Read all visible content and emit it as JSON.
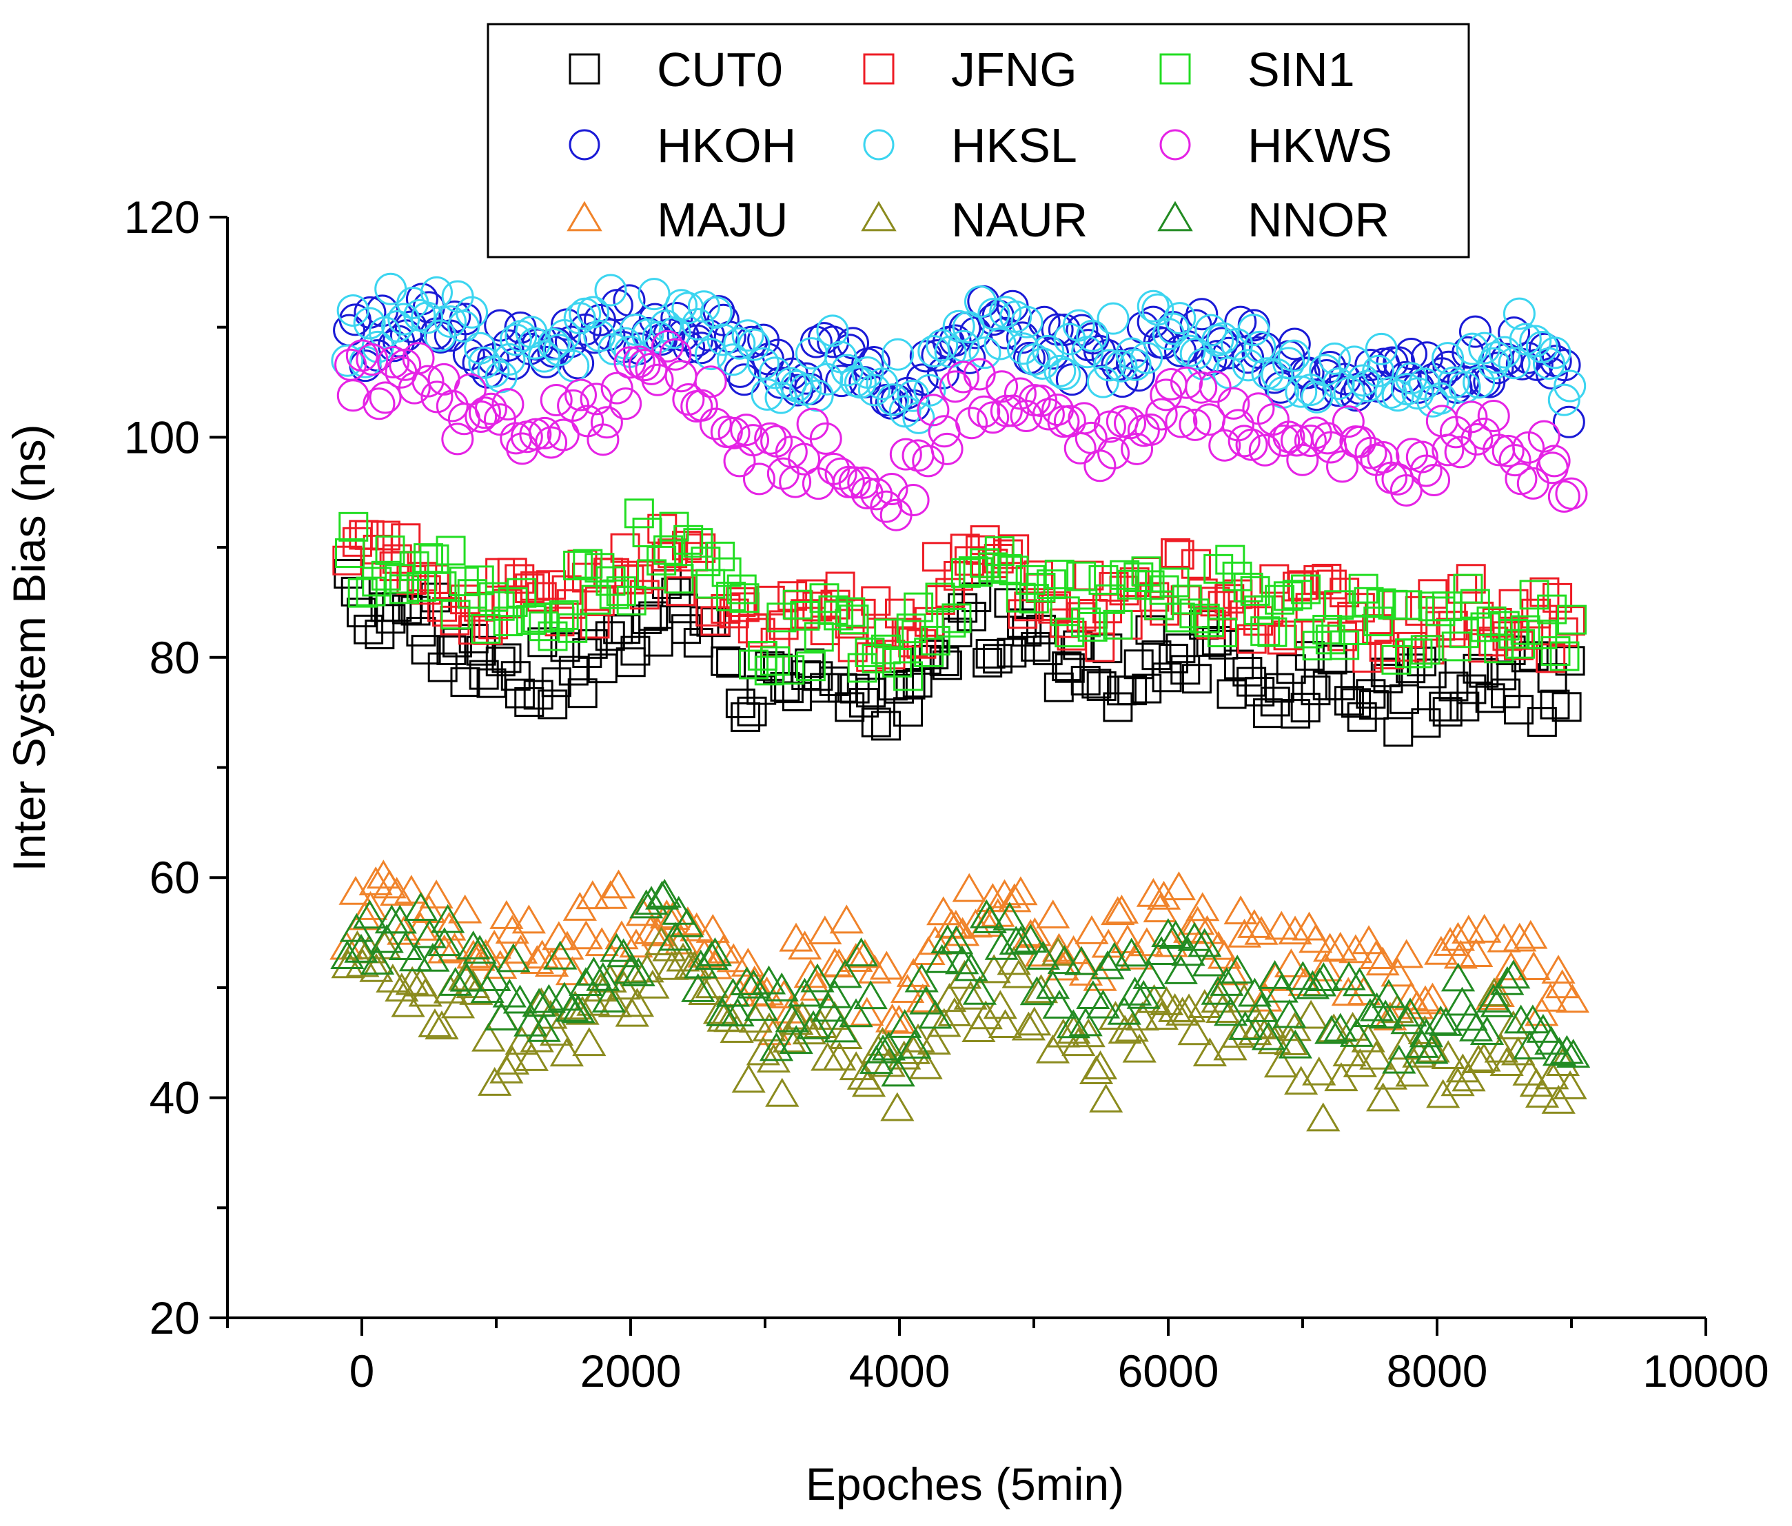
{
  "chart_data": {
    "type": "scatter",
    "title": "",
    "xlabel": "Epoches (5min)",
    "ylabel": "Inter System Bias (ns)",
    "xlim": [
      -1000,
      10000
    ],
    "ylim": [
      20,
      120
    ],
    "xticks": [
      0,
      2000,
      4000,
      6000,
      8000,
      10000
    ],
    "yticks": [
      20,
      40,
      60,
      80,
      100,
      120
    ],
    "grid": false,
    "legend_position": "top-center",
    "legend_columns": 3,
    "x_range": [
      -100,
      9000
    ],
    "series": [
      {
        "name": "CUT0",
        "marker": "square",
        "color": "#000000",
        "x": [
          0,
          250,
          500,
          750,
          1000,
          1250,
          1500,
          1750,
          2000,
          2250,
          2500,
          2750,
          3000,
          3250,
          3500,
          3750,
          4000,
          4250,
          4500,
          4750,
          5000,
          5250,
          5500,
          5750,
          6000,
          6250,
          6500,
          6750,
          7000,
          7250,
          7500,
          7750,
          8000,
          8250,
          8500,
          8750,
          9000
        ],
        "values": [
          85,
          84,
          83,
          80,
          78,
          78,
          79,
          80,
          82,
          84,
          82,
          79,
          76,
          77,
          78,
          77,
          76,
          80,
          82,
          83,
          81,
          80,
          79,
          80,
          81,
          80,
          79,
          78,
          78,
          78,
          77,
          76,
          77,
          78,
          78,
          77,
          77
        ]
      },
      {
        "name": "JFNG",
        "marker": "square",
        "color": "#ee1c25",
        "x": [
          0,
          250,
          500,
          750,
          1000,
          1250,
          1500,
          1750,
          2000,
          2250,
          2500,
          2750,
          3000,
          3250,
          3500,
          3750,
          4000,
          4250,
          4500,
          4750,
          5000,
          5250,
          5500,
          5750,
          6000,
          6250,
          6500,
          6750,
          7000,
          7250,
          7500,
          7750,
          8000,
          8250,
          8500,
          8750,
          9000
        ],
        "values": [
          90,
          89,
          88,
          86,
          85,
          84,
          85,
          86,
          88,
          90,
          88,
          85,
          82,
          83,
          84,
          83,
          81,
          85,
          87,
          88,
          86,
          85,
          84,
          85,
          87,
          86,
          85,
          84,
          84,
          84,
          83,
          82,
          83,
          84,
          84,
          83,
          83
        ]
      },
      {
        "name": "SIN1",
        "marker": "square",
        "color": "#22dd22",
        "x": [
          0,
          250,
          500,
          750,
          1000,
          1250,
          1500,
          1750,
          2000,
          2250,
          2500,
          2750,
          3000,
          3250,
          3500,
          3750,
          4000,
          4250,
          4500,
          4750,
          5000,
          5250,
          5500,
          5750,
          6000,
          6250,
          6500,
          6750,
          7000,
          7250,
          7500,
          7750,
          8000,
          8250,
          8500,
          8750,
          9000
        ],
        "values": [
          89,
          88,
          88,
          86,
          85,
          84,
          85,
          86,
          88,
          90,
          88,
          85,
          81,
          82,
          83,
          82,
          79,
          84,
          86,
          88,
          86,
          85,
          84,
          85,
          87,
          86,
          85,
          84,
          83,
          84,
          83,
          82,
          83,
          84,
          84,
          83,
          83
        ]
      },
      {
        "name": "HKOH",
        "marker": "circle",
        "color": "#1a1ad6",
        "x": [
          0,
          250,
          500,
          750,
          1000,
          1250,
          1500,
          1750,
          2000,
          2250,
          2500,
          2750,
          3000,
          3250,
          3500,
          3750,
          4000,
          4250,
          4500,
          4750,
          5000,
          5250,
          5500,
          5750,
          6000,
          6250,
          6500,
          6750,
          7000,
          7250,
          7500,
          7750,
          8000,
          8250,
          8500,
          8750,
          9000
        ],
        "values": [
          109,
          111,
          111,
          110,
          108,
          107,
          108,
          109,
          110,
          111,
          110,
          108,
          106,
          106,
          107,
          106,
          104,
          107,
          109,
          111,
          109,
          108,
          107,
          108,
          110,
          109,
          108,
          107,
          106,
          107,
          106,
          105,
          106,
          107,
          107,
          106,
          104
        ]
      },
      {
        "name": "HKSL",
        "marker": "circle",
        "color": "#3cd5f0",
        "x": [
          0,
          250,
          500,
          750,
          1000,
          1250,
          1500,
          1750,
          2000,
          2250,
          2500,
          2750,
          3000,
          3250,
          3500,
          3750,
          4000,
          4250,
          4500,
          4750,
          5000,
          5250,
          5500,
          5750,
          6000,
          6250,
          6500,
          6750,
          7000,
          7250,
          7500,
          7750,
          8000,
          8250,
          8500,
          8750,
          9000
        ],
        "values": [
          109,
          111,
          111,
          110,
          108,
          107,
          108,
          109,
          110,
          111,
          110,
          108,
          106,
          106,
          107,
          106,
          104,
          107,
          109,
          111,
          109,
          108,
          107,
          108,
          110,
          109,
          108,
          107,
          106,
          107,
          106,
          105,
          106,
          107,
          107,
          106,
          104
        ]
      },
      {
        "name": "HKWS",
        "marker": "circle",
        "color": "#e523e5",
        "x": [
          0,
          250,
          500,
          750,
          1000,
          1250,
          1500,
          1750,
          2000,
          2250,
          2500,
          2750,
          3000,
          3250,
          3500,
          3750,
          4000,
          4250,
          4500,
          4750,
          5000,
          5250,
          5500,
          5750,
          6000,
          6250,
          6500,
          6750,
          7000,
          7250,
          7500,
          7750,
          8000,
          8250,
          8500,
          8750,
          9000
        ],
        "values": [
          105,
          106,
          104,
          102,
          101,
          100,
          101,
          102,
          105,
          106,
          104,
          101,
          98,
          98,
          99,
          97,
          95,
          100,
          103,
          105,
          103,
          101,
          100,
          101,
          104,
          103,
          101,
          100,
          99,
          99,
          98,
          97,
          99,
          100,
          100,
          98,
          97
        ]
      },
      {
        "name": "MAJU",
        "marker": "triangle",
        "color": "#f0832a",
        "x": [
          0,
          250,
          500,
          750,
          1000,
          1250,
          1500,
          1750,
          2000,
          2250,
          2500,
          2750,
          3000,
          3250,
          3500,
          3750,
          4000,
          4250,
          4500,
          4750,
          5000,
          5250,
          5500,
          5750,
          6000,
          6250,
          6500,
          6750,
          7000,
          7250,
          7500,
          7750,
          8000,
          8250,
          8500,
          8750,
          9000
        ],
        "values": [
          56,
          58,
          57,
          55,
          54,
          53,
          54,
          55,
          57,
          58,
          56,
          53,
          50,
          51,
          52,
          50,
          48,
          54,
          56,
          58,
          56,
          54,
          53,
          54,
          56,
          55,
          54,
          52,
          52,
          52,
          51,
          50,
          51,
          52,
          52,
          51,
          50
        ]
      },
      {
        "name": "NAUR",
        "marker": "triangle",
        "color": "#8b8b1e",
        "x": [
          0,
          250,
          500,
          750,
          1000,
          1250,
          1500,
          1750,
          2000,
          2250,
          2500,
          2750,
          3000,
          3250,
          3500,
          3750,
          4000,
          4250,
          4500,
          4750,
          5000,
          5250,
          5500,
          5750,
          6000,
          6250,
          6500,
          6750,
          7000,
          7250,
          7500,
          7750,
          8000,
          8250,
          8500,
          8750,
          9000
        ],
        "values": [
          51,
          51,
          50,
          48,
          46,
          45,
          46,
          47,
          50,
          51,
          49,
          46,
          43,
          44,
          45,
          43,
          40,
          46,
          48,
          50,
          48,
          46,
          45,
          46,
          48,
          47,
          46,
          44,
          44,
          44,
          43,
          42,
          43,
          44,
          44,
          43,
          42
        ]
      },
      {
        "name": "NNOR",
        "marker": "triangle",
        "color": "#228b22",
        "x": [
          0,
          250,
          500,
          750,
          1000,
          1250,
          1500,
          1750,
          2000,
          2250,
          2500,
          2750,
          3000,
          3250,
          3500,
          3750,
          4000,
          4250,
          4500,
          4750,
          5000,
          5250,
          5500,
          5750,
          6000,
          6250,
          6500,
          6750,
          7000,
          7250,
          7500,
          7750,
          8000,
          8250,
          8500,
          8750,
          9000
        ],
        "values": [
          54,
          55,
          54,
          52,
          50,
          49,
          50,
          51,
          54,
          55,
          53,
          50,
          47,
          48,
          49,
          47,
          44,
          50,
          52,
          54,
          52,
          50,
          49,
          50,
          52,
          51,
          50,
          48,
          48,
          48,
          47,
          46,
          47,
          48,
          48,
          47,
          46
        ]
      }
    ]
  }
}
